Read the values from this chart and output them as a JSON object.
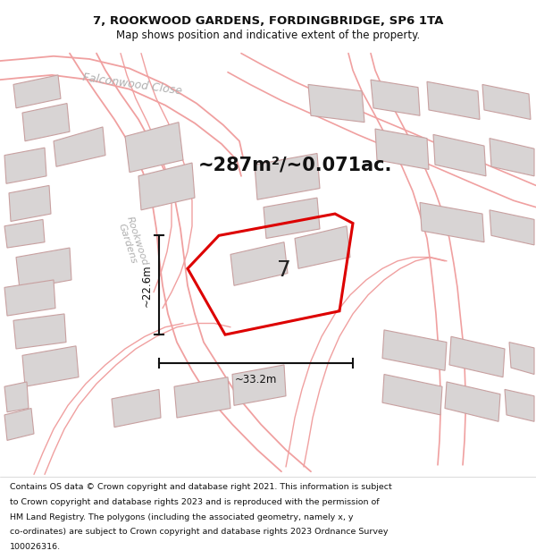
{
  "title_line1": "7, ROOKWOOD GARDENS, FORDINGBRIDGE, SP6 1TA",
  "title_line2": "Map shows position and indicative extent of the property.",
  "area_text": "~287m²/~0.071ac.",
  "label_7": "7",
  "dim_width": "~33.2m",
  "dim_height": "~22.6m",
  "footer_lines": [
    "Contains OS data © Crown copyright and database right 2021. This information is subject",
    "to Crown copyright and database rights 2023 and is reproduced with the permission of",
    "HM Land Registry. The polygons (including the associated geometry, namely x, y",
    "co-ordinates) are subject to Crown copyright and database rights 2023 Ordnance Survey",
    "100026316."
  ],
  "bg_color": "#ffffff",
  "map_bg": "#f7f5f5",
  "plot_color": "#dd0000",
  "road_color": "#f0a0a0",
  "road_color2": "#e08080",
  "building_edge": "#c8a0a0",
  "building_fill": "#d8d4d4",
  "road_label_color": "#b0b0b0",
  "dim_color": "#111111",
  "title_color": "#111111",
  "footer_color": "#111111"
}
